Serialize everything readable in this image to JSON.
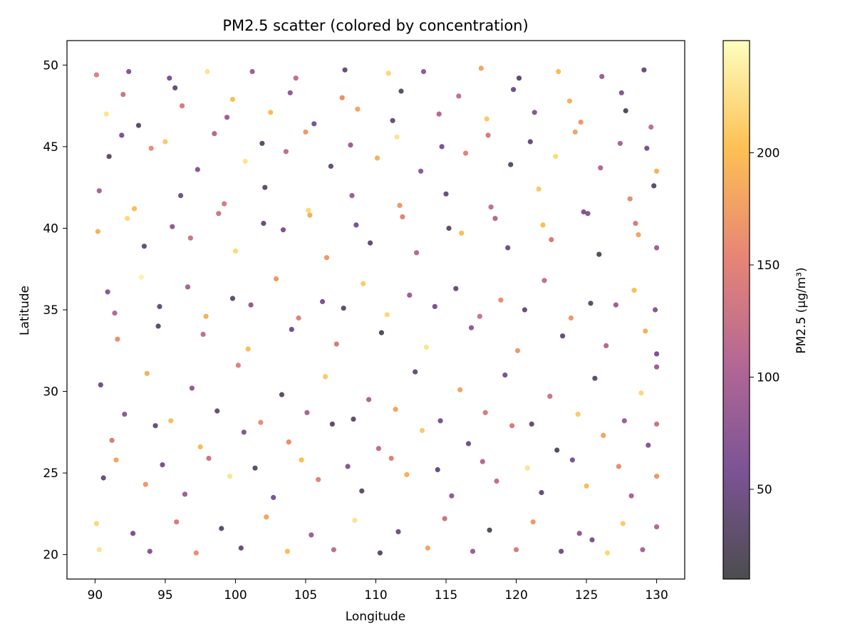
{
  "chart_data": {
    "type": "scatter",
    "title": "PM2.5 scatter (colored by concentration)",
    "xlabel": "Longitude",
    "ylabel": "Latitude",
    "xlim": [
      88,
      132
    ],
    "ylim": [
      18.5,
      51.5
    ],
    "xticks": [
      90,
      95,
      100,
      105,
      110,
      115,
      120,
      125,
      130
    ],
    "yticks": [
      20,
      25,
      30,
      35,
      40,
      45,
      50
    ],
    "colorbar": {
      "label": "PM2.5 (μg/m³)",
      "colormap": "inferno",
      "range": [
        10,
        250
      ],
      "ticks": [
        50,
        100,
        150,
        200
      ]
    },
    "point_alpha": 0.7,
    "point_count_shown": 2000,
    "points_encoding": "each point is [longitude, latitude, pm25]",
    "points": [
      [
        90.1,
        49.4,
        150
      ],
      [
        92.4,
        49.6,
        70
      ],
      [
        95.3,
        49.2,
        60
      ],
      [
        98.0,
        49.6,
        230
      ],
      [
        101.2,
        49.6,
        90
      ],
      [
        104.3,
        49.2,
        120
      ],
      [
        107.8,
        49.7,
        40
      ],
      [
        110.9,
        49.5,
        220
      ],
      [
        113.4,
        49.6,
        80
      ],
      [
        117.5,
        49.8,
        180
      ],
      [
        120.2,
        49.2,
        30
      ],
      [
        123.0,
        49.6,
        200
      ],
      [
        126.1,
        49.3,
        90
      ],
      [
        129.1,
        49.7,
        40
      ],
      [
        90.8,
        47.0,
        230
      ],
      [
        93.1,
        46.3,
        30
      ],
      [
        96.2,
        47.5,
        140
      ],
      [
        99.4,
        46.8,
        90
      ],
      [
        102.5,
        47.1,
        200
      ],
      [
        105.6,
        46.4,
        60
      ],
      [
        108.7,
        47.3,
        180
      ],
      [
        111.2,
        46.6,
        40
      ],
      [
        114.5,
        47.0,
        110
      ],
      [
        117.9,
        46.7,
        210
      ],
      [
        121.3,
        47.1,
        70
      ],
      [
        124.6,
        46.5,
        170
      ],
      [
        127.8,
        47.2,
        20
      ],
      [
        129.6,
        46.2,
        120
      ],
      [
        91.0,
        44.4,
        30
      ],
      [
        94.0,
        44.9,
        160
      ],
      [
        97.3,
        43.6,
        70
      ],
      [
        100.7,
        44.1,
        230
      ],
      [
        103.6,
        44.7,
        120
      ],
      [
        106.8,
        43.8,
        40
      ],
      [
        110.1,
        44.3,
        190
      ],
      [
        113.2,
        43.5,
        80
      ],
      [
        116.4,
        44.6,
        150
      ],
      [
        119.6,
        43.9,
        30
      ],
      [
        122.8,
        44.4,
        220
      ],
      [
        126.0,
        43.7,
        110
      ],
      [
        129.3,
        44.9,
        60
      ],
      [
        130.0,
        43.5,
        190
      ],
      [
        90.3,
        42.3,
        100
      ],
      [
        92.8,
        41.2,
        200
      ],
      [
        96.1,
        42.0,
        50
      ],
      [
        99.2,
        41.5,
        140
      ],
      [
        102.1,
        42.5,
        30
      ],
      [
        105.2,
        41.1,
        220
      ],
      [
        108.3,
        42.0,
        90
      ],
      [
        111.7,
        41.4,
        170
      ],
      [
        115.0,
        42.1,
        40
      ],
      [
        118.2,
        41.3,
        120
      ],
      [
        121.6,
        42.4,
        210
      ],
      [
        124.8,
        41.0,
        70
      ],
      [
        128.1,
        41.8,
        160
      ],
      [
        129.8,
        42.6,
        30
      ],
      [
        90.2,
        39.8,
        190
      ],
      [
        93.5,
        38.9,
        40
      ],
      [
        96.8,
        39.4,
        130
      ],
      [
        100.0,
        38.6,
        220
      ],
      [
        103.4,
        39.9,
        60
      ],
      [
        106.5,
        38.2,
        170
      ],
      [
        109.6,
        39.1,
        30
      ],
      [
        112.9,
        38.5,
        110
      ],
      [
        116.1,
        39.7,
        200
      ],
      [
        119.4,
        38.8,
        50
      ],
      [
        122.5,
        39.3,
        140
      ],
      [
        125.9,
        38.4,
        20
      ],
      [
        128.7,
        39.6,
        180
      ],
      [
        130.0,
        38.8,
        90
      ],
      [
        90.9,
        36.1,
        70
      ],
      [
        93.3,
        37.0,
        240
      ],
      [
        96.6,
        36.4,
        100
      ],
      [
        99.8,
        35.7,
        30
      ],
      [
        102.9,
        36.9,
        170
      ],
      [
        106.2,
        35.5,
        60
      ],
      [
        109.1,
        36.6,
        210
      ],
      [
        112.4,
        35.9,
        90
      ],
      [
        115.7,
        36.3,
        40
      ],
      [
        118.9,
        35.6,
        160
      ],
      [
        122.0,
        36.8,
        120
      ],
      [
        125.3,
        35.4,
        30
      ],
      [
        128.4,
        36.2,
        200
      ],
      [
        129.9,
        35.0,
        70
      ],
      [
        91.6,
        33.2,
        160
      ],
      [
        94.5,
        34.0,
        30
      ],
      [
        97.7,
        33.5,
        120
      ],
      [
        100.9,
        32.6,
        200
      ],
      [
        104.0,
        33.8,
        50
      ],
      [
        107.2,
        32.9,
        140
      ],
      [
        110.4,
        33.6,
        20
      ],
      [
        113.6,
        32.7,
        230
      ],
      [
        116.8,
        33.9,
        80
      ],
      [
        120.1,
        32.5,
        170
      ],
      [
        123.3,
        33.4,
        40
      ],
      [
        126.4,
        32.8,
        110
      ],
      [
        129.2,
        33.7,
        190
      ],
      [
        130.0,
        32.3,
        60
      ],
      [
        90.4,
        30.4,
        50
      ],
      [
        93.7,
        31.1,
        190
      ],
      [
        96.9,
        30.2,
        80
      ],
      [
        100.2,
        31.6,
        150
      ],
      [
        103.3,
        29.8,
        30
      ],
      [
        106.4,
        30.9,
        210
      ],
      [
        109.5,
        29.5,
        100
      ],
      [
        112.8,
        31.2,
        40
      ],
      [
        116.0,
        30.1,
        180
      ],
      [
        119.2,
        31.0,
        60
      ],
      [
        122.4,
        29.7,
        130
      ],
      [
        125.6,
        30.8,
        30
      ],
      [
        128.9,
        29.9,
        220
      ],
      [
        130.0,
        31.5,
        90
      ],
      [
        91.2,
        27.0,
        140
      ],
      [
        94.3,
        27.9,
        40
      ],
      [
        97.5,
        26.6,
        200
      ],
      [
        100.6,
        27.5,
        70
      ],
      [
        103.8,
        26.9,
        160
      ],
      [
        106.9,
        28.0,
        30
      ],
      [
        110.2,
        26.5,
        120
      ],
      [
        113.3,
        27.6,
        210
      ],
      [
        116.6,
        26.8,
        50
      ],
      [
        119.7,
        27.9,
        140
      ],
      [
        122.9,
        26.4,
        20
      ],
      [
        126.2,
        27.3,
        180
      ],
      [
        129.4,
        26.7,
        70
      ],
      [
        130.0,
        28.0,
        130
      ],
      [
        90.6,
        24.7,
        40
      ],
      [
        93.6,
        24.3,
        170
      ],
      [
        96.4,
        23.7,
        90
      ],
      [
        99.6,
        24.8,
        230
      ],
      [
        102.7,
        23.5,
        60
      ],
      [
        105.9,
        24.6,
        150
      ],
      [
        109.0,
        23.9,
        30
      ],
      [
        112.2,
        24.9,
        190
      ],
      [
        115.4,
        23.6,
        80
      ],
      [
        118.6,
        24.5,
        120
      ],
      [
        121.8,
        23.8,
        40
      ],
      [
        125.0,
        24.2,
        200
      ],
      [
        128.2,
        23.6,
        100
      ],
      [
        130.0,
        24.8,
        170
      ],
      [
        90.1,
        21.9,
        220
      ],
      [
        92.7,
        21.3,
        60
      ],
      [
        95.8,
        22.0,
        140
      ],
      [
        99.0,
        21.6,
        30
      ],
      [
        102.2,
        22.3,
        180
      ],
      [
        105.4,
        21.2,
        90
      ],
      [
        108.5,
        22.1,
        230
      ],
      [
        111.6,
        21.4,
        50
      ],
      [
        114.9,
        22.2,
        130
      ],
      [
        118.1,
        21.5,
        20
      ],
      [
        121.2,
        22.0,
        170
      ],
      [
        124.5,
        21.3,
        80
      ],
      [
        127.6,
        21.9,
        210
      ],
      [
        130.0,
        21.7,
        110
      ],
      [
        90.3,
        20.3,
        230
      ],
      [
        93.9,
        20.2,
        70
      ],
      [
        97.2,
        20.1,
        160
      ],
      [
        100.4,
        20.4,
        40
      ],
      [
        103.7,
        20.2,
        200
      ],
      [
        107.0,
        20.3,
        120
      ],
      [
        110.3,
        20.1,
        30
      ],
      [
        113.7,
        20.4,
        180
      ],
      [
        116.9,
        20.2,
        90
      ],
      [
        120.0,
        20.3,
        140
      ],
      [
        123.2,
        20.2,
        50
      ],
      [
        126.5,
        20.1,
        220
      ],
      [
        129.0,
        20.3,
        100
      ],
      [
        125.4,
        20.9,
        60
      ],
      [
        92.0,
        48.2,
        130
      ],
      [
        95.7,
        48.6,
        40
      ],
      [
        99.8,
        47.9,
        200
      ],
      [
        103.9,
        48.3,
        80
      ],
      [
        107.6,
        48.0,
        160
      ],
      [
        111.8,
        48.4,
        30
      ],
      [
        115.9,
        48.1,
        120
      ],
      [
        119.8,
        48.5,
        50
      ],
      [
        123.8,
        47.8,
        190
      ],
      [
        127.5,
        48.3,
        70
      ],
      [
        91.9,
        45.7,
        60
      ],
      [
        95.0,
        45.3,
        210
      ],
      [
        98.5,
        45.8,
        110
      ],
      [
        101.9,
        45.2,
        30
      ],
      [
        105.0,
        45.9,
        170
      ],
      [
        108.2,
        45.1,
        90
      ],
      [
        111.5,
        45.6,
        230
      ],
      [
        114.7,
        45.0,
        60
      ],
      [
        118.0,
        45.7,
        140
      ],
      [
        121.0,
        45.3,
        40
      ],
      [
        124.2,
        45.9,
        180
      ],
      [
        127.4,
        45.2,
        100
      ],
      [
        92.3,
        40.6,
        220
      ],
      [
        95.5,
        40.1,
        80
      ],
      [
        98.8,
        40.9,
        130
      ],
      [
        102.0,
        40.3,
        40
      ],
      [
        105.3,
        40.8,
        190
      ],
      [
        108.6,
        40.2,
        60
      ],
      [
        111.9,
        40.7,
        150
      ],
      [
        115.2,
        40.0,
        30
      ],
      [
        118.5,
        40.6,
        110
      ],
      [
        121.9,
        40.2,
        200
      ],
      [
        125.1,
        40.9,
        70
      ],
      [
        128.5,
        40.3,
        140
      ],
      [
        91.4,
        34.8,
        110
      ],
      [
        94.6,
        35.2,
        40
      ],
      [
        97.9,
        34.6,
        190
      ],
      [
        101.1,
        35.3,
        80
      ],
      [
        104.5,
        34.5,
        150
      ],
      [
        107.7,
        35.1,
        30
      ],
      [
        110.8,
        34.7,
        220
      ],
      [
        114.2,
        35.2,
        60
      ],
      [
        117.4,
        34.6,
        130
      ],
      [
        120.6,
        35.0,
        40
      ],
      [
        123.9,
        34.5,
        170
      ],
      [
        127.1,
        35.3,
        90
      ],
      [
        92.1,
        28.6,
        80
      ],
      [
        95.4,
        28.2,
        200
      ],
      [
        98.7,
        28.8,
        40
      ],
      [
        101.8,
        28.1,
        160
      ],
      [
        105.1,
        28.7,
        100
      ],
      [
        108.4,
        28.3,
        30
      ],
      [
        111.4,
        28.9,
        180
      ],
      [
        114.6,
        28.2,
        60
      ],
      [
        117.8,
        28.7,
        140
      ],
      [
        121.1,
        28.0,
        40
      ],
      [
        124.4,
        28.6,
        210
      ],
      [
        127.7,
        28.2,
        90
      ],
      [
        91.5,
        25.8,
        180
      ],
      [
        94.8,
        25.5,
        60
      ],
      [
        98.1,
        25.9,
        130
      ],
      [
        101.4,
        25.3,
        30
      ],
      [
        104.7,
        25.8,
        200
      ],
      [
        108.0,
        25.4,
        70
      ],
      [
        111.1,
        25.9,
        150
      ],
      [
        114.4,
        25.2,
        40
      ],
      [
        117.6,
        25.7,
        110
      ],
      [
        120.8,
        25.3,
        230
      ],
      [
        124.0,
        25.8,
        60
      ],
      [
        127.3,
        25.4,
        160
      ]
    ]
  }
}
